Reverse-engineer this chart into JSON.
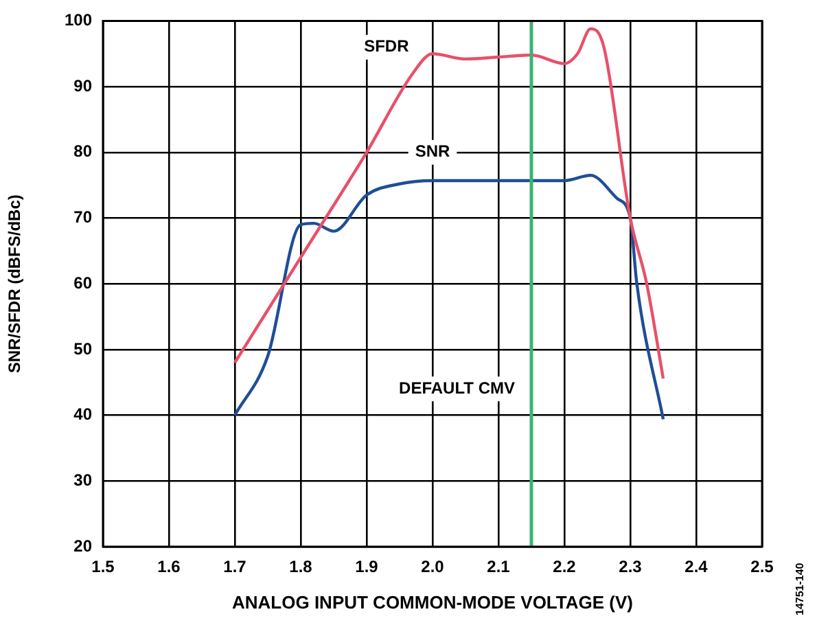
{
  "chart_data": {
    "type": "line",
    "xlabel": "ANALOG INPUT COMMON-MODE VOLTAGE (V)",
    "ylabel": "SNR/SFDR (dBFS/dBc)",
    "xlim": [
      1.5,
      2.5
    ],
    "xticks": [
      1.5,
      1.6,
      1.7,
      1.8,
      1.9,
      {
        "value": 2,
        "label": "2.0"
      },
      2.1,
      2.2,
      2.3,
      2.4,
      2.5
    ],
    "ylim": [
      20,
      100
    ],
    "yticks": [
      20,
      30,
      40,
      50,
      60,
      70,
      80,
      90,
      100
    ],
    "grid": true,
    "marker": "none",
    "line_style": "solid",
    "series": [
      {
        "color": "#e8506a",
        "x": [
          1.7,
          1.75,
          1.8,
          1.9,
          1.97,
          2.0,
          2.05,
          2.1,
          2.15,
          2.2,
          2.22,
          2.24,
          2.26,
          2.3,
          2.325,
          2.35
        ],
        "values": [
          48,
          56,
          64,
          80,
          92,
          95,
          94.2,
          94.5,
          94.8,
          93.5,
          95,
          98.8,
          96,
          70,
          60,
          45.6
        ]
      },
      {
        "color": "#1f4e96",
        "x": [
          1.7,
          1.75,
          1.8,
          1.82,
          1.85,
          1.9,
          1.95,
          2.0,
          2.1,
          2.2,
          2.24,
          2.28,
          2.3,
          2.31,
          2.35
        ],
        "values": [
          40,
          49,
          69,
          69.2,
          68,
          73.5,
          75.2,
          75.7,
          75.7,
          75.7,
          76.5,
          73,
          70,
          60,
          39.4
        ]
      }
    ],
    "ref_lines": [
      {
        "axis": "x",
        "value": 2.15,
        "label": "DEFAULT CMV",
        "color": "#3cb371"
      }
    ],
    "annotations": [
      {
        "text": "SFDR",
        "x": 1.93,
        "y": 96
      },
      {
        "text": "SNR",
        "x": 2.0,
        "y": 80
      },
      "14751-140"
    ]
  }
}
